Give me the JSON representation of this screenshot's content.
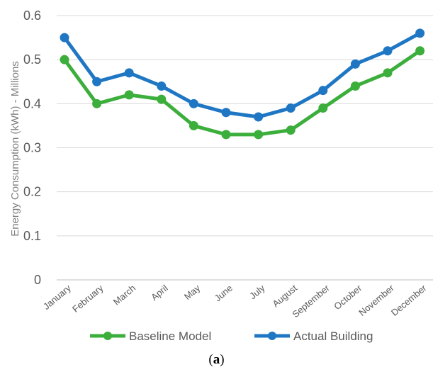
{
  "chart_data": {
    "type": "line",
    "ylabel": "Energy Consumption (kWh) - Millions",
    "xlabel": "",
    "ylim": [
      0,
      0.6
    ],
    "yticks": [
      "0",
      "0.1",
      "0.2",
      "0.3",
      "0.4",
      "0.5",
      "0.6"
    ],
    "grid": true,
    "legend_position": "bottom",
    "categories": [
      "January",
      "February",
      "March",
      "April",
      "May",
      "June",
      "July",
      "August",
      "September",
      "October",
      "November",
      "December"
    ],
    "series": [
      {
        "name": "Baseline Model",
        "color": "#3cae3c",
        "values": [
          0.5,
          0.4,
          0.42,
          0.41,
          0.35,
          0.33,
          0.33,
          0.34,
          0.39,
          0.44,
          0.47,
          0.52
        ]
      },
      {
        "name": "Actual Building",
        "color": "#1f77c4",
        "values": [
          0.55,
          0.45,
          0.47,
          0.44,
          0.4,
          0.38,
          0.37,
          0.39,
          0.43,
          0.49,
          0.52,
          0.56
        ]
      }
    ]
  },
  "caption": {
    "open": "(",
    "label": "a",
    "close": ")"
  }
}
